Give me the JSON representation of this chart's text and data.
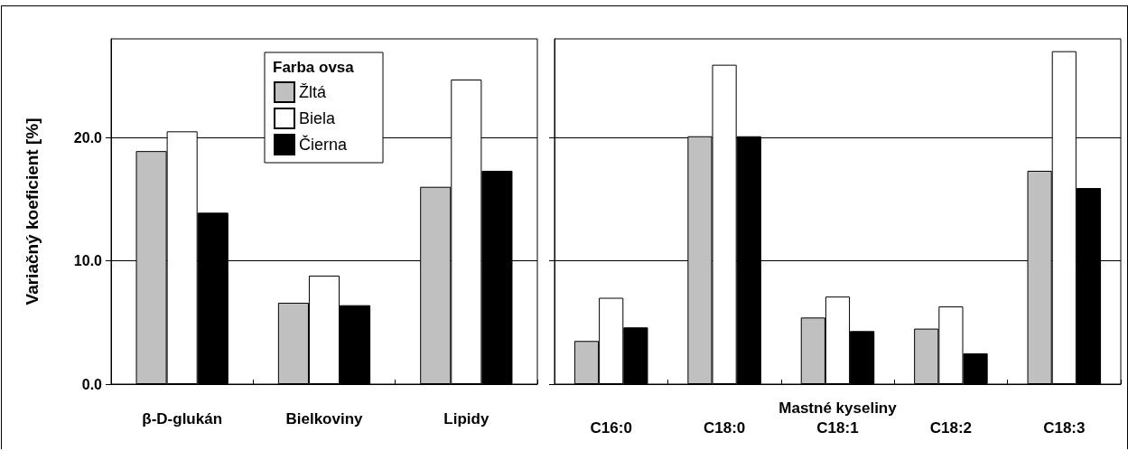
{
  "chart_data": [
    {
      "type": "bar",
      "ylabel": "Variačný koeficient [%]",
      "legend_title": "Farba ovsa",
      "categories": [
        "β-D-glukán",
        "Bielkoviny",
        "Lipidy"
      ],
      "ylim": [
        0,
        28
      ],
      "yticks": [
        {
          "value": 0,
          "label": "0.0"
        },
        {
          "value": 10,
          "label": "10.0"
        },
        {
          "value": 20,
          "label": "20.0"
        }
      ],
      "grid": "y",
      "legend": "top",
      "series": [
        {
          "name": "Žltá",
          "color": "#c0c0c0",
          "values": [
            18.9,
            6.6,
            16.0
          ]
        },
        {
          "name": "Biela",
          "color": "#ffffff",
          "values": [
            20.5,
            8.8,
            24.7
          ]
        },
        {
          "name": "Čierna",
          "color": "#000000",
          "values": [
            13.9,
            6.4,
            17.3
          ]
        }
      ]
    },
    {
      "type": "bar",
      "xlabel": "Mastné kyseliny",
      "categories": [
        "C16:0",
        "C18:0",
        "C18:1",
        "C18:2",
        "C18:3"
      ],
      "ylim": [
        0,
        28
      ],
      "yticks": [
        {
          "value": 0,
          "label": null
        },
        {
          "value": 10,
          "label": null
        },
        {
          "value": 20,
          "label": null
        }
      ],
      "grid": "y",
      "tick_labels": "x",
      "series": [
        {
          "color": "#c0c0c0",
          "values": [
            3.5,
            20.1,
            5.4,
            4.5,
            17.3
          ]
        },
        {
          "color": "#ffffff",
          "values": [
            7.0,
            25.9,
            7.1,
            6.3,
            27.0
          ]
        },
        {
          "color": "#000000",
          "values": [
            4.6,
            20.1,
            4.3,
            2.5,
            15.9
          ]
        }
      ]
    }
  ]
}
